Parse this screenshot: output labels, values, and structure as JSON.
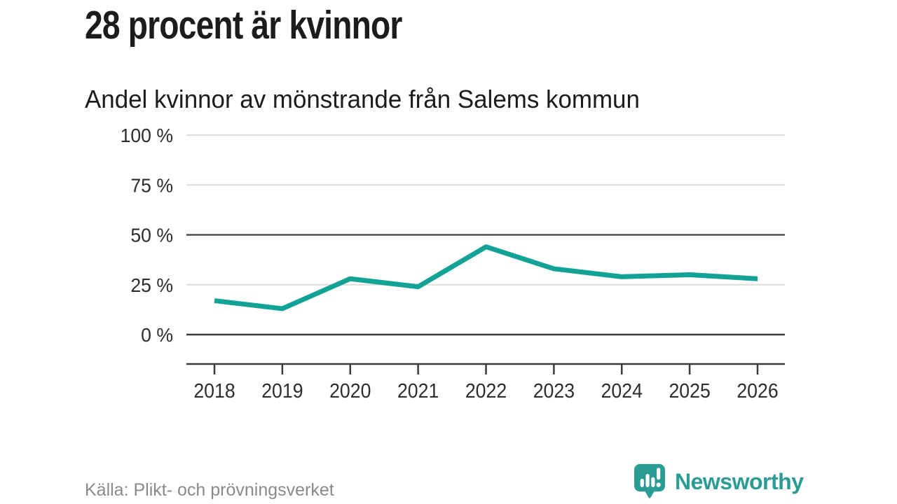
{
  "chart_data": {
    "type": "line",
    "title": "28 procent är kvinnor",
    "subtitle": "Andel kvinnor av mönstrande från Salems kommun",
    "x": [
      2018,
      2019,
      2020,
      2021,
      2022,
      2023,
      2024,
      2025,
      2026
    ],
    "values": [
      17,
      13,
      28,
      24,
      44,
      33,
      29,
      30,
      28
    ],
    "unit": "%",
    "xlabel": "",
    "ylabel": "",
    "ylim": [
      0,
      100
    ],
    "yticks": [
      0,
      25,
      50,
      75,
      100
    ],
    "ytick_labels": [
      "0 %",
      "25 %",
      "50 %",
      "75 %",
      "100 %"
    ],
    "grid": "horizontal-only",
    "legend": "none",
    "line_color": "#12a396"
  },
  "footer": {
    "source": "Källa: Plikt- och prövningsverket",
    "logo_text": "Newsworthy"
  },
  "icons": {
    "logo_icon": "newsworthy-speech-bubble-bar-chart-icon"
  },
  "colors": {
    "accent_teal": "#12a396",
    "logo_teal": "#2b9c94",
    "grid_light": "#dcdcdc",
    "grid_mid": "#4d4d4d",
    "grid_dark": "#3a3a3a",
    "text_dark": "#1c1c1c",
    "text_axis": "#2d2d2d",
    "text_muted": "#8a8a8a",
    "background": "#ffffff"
  }
}
